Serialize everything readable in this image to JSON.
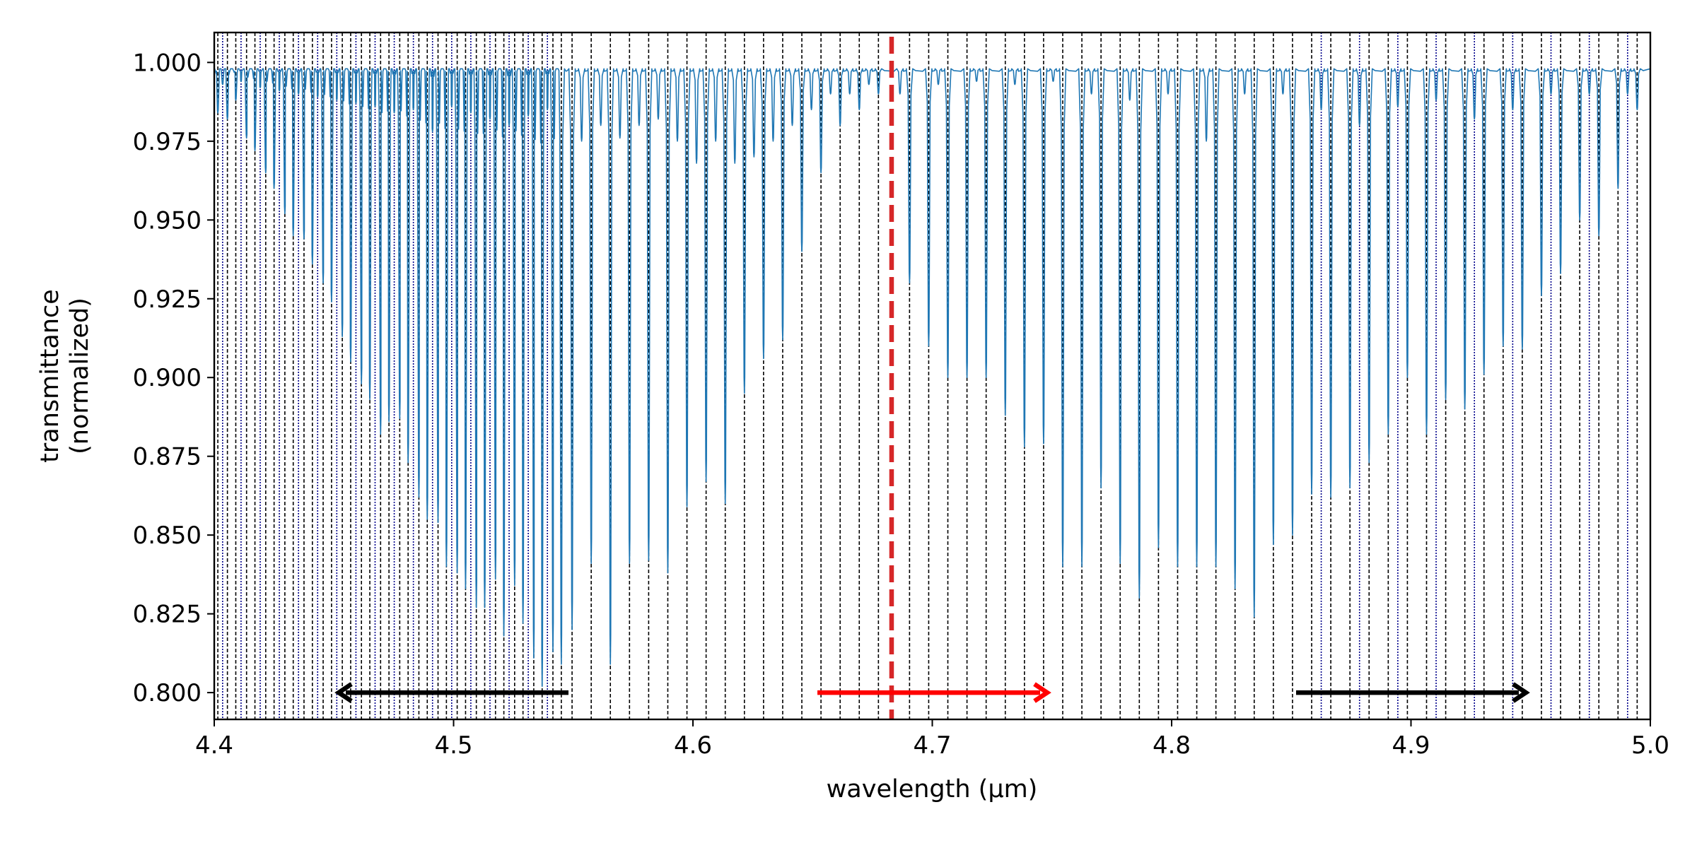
{
  "chart_data": {
    "type": "line",
    "xlabel": "wavelength (μm)",
    "ylabel_lines": [
      "transmittance",
      "(normalized)"
    ],
    "xlim": [
      4.4,
      5.0
    ],
    "ylim": [
      0.7915,
      1.0095
    ],
    "x_ticks": [
      4.4,
      4.5,
      4.6,
      4.7,
      4.8,
      4.9,
      5.0
    ],
    "x_tick_labels": [
      "4.4",
      "4.5",
      "4.6",
      "4.7",
      "4.8",
      "4.9",
      "5.0"
    ],
    "y_ticks": [
      0.8,
      0.825,
      0.85,
      0.875,
      0.9,
      0.925,
      0.95,
      0.975,
      1.0
    ],
    "y_tick_labels": [
      "0.800",
      "0.825",
      "0.850",
      "0.875",
      "0.900",
      "0.925",
      "0.950",
      "0.975",
      "1.000"
    ],
    "grid": false,
    "colors": {
      "spectrum": "#1f77b4",
      "line_marker": "#000000",
      "blue_marker": "#00008b",
      "reference": "#d62728",
      "arrow_red": "#ff0000",
      "arrow_black": "#000000"
    },
    "continuum": 0.998,
    "absorption_lines": [
      {
        "x": 4.4015,
        "depth": 0.984
      },
      {
        "x": 4.4055,
        "depth": 0.982
      },
      {
        "x": 4.409,
        "depth": 0.988
      },
      {
        "x": 4.4135,
        "depth": 0.976
      },
      {
        "x": 4.417,
        "depth": 0.972
      },
      {
        "x": 4.4215,
        "depth": 0.965
      },
      {
        "x": 4.425,
        "depth": 0.96
      },
      {
        "x": 4.4295,
        "depth": 0.952
      },
      {
        "x": 4.433,
        "depth": 0.945
      },
      {
        "x": 4.4375,
        "depth": 0.944
      },
      {
        "x": 4.441,
        "depth": 0.936
      },
      {
        "x": 4.4455,
        "depth": 0.93
      },
      {
        "x": 4.449,
        "depth": 0.924
      },
      {
        "x": 4.4535,
        "depth": 0.913
      },
      {
        "x": 4.457,
        "depth": 0.905
      },
      {
        "x": 4.4615,
        "depth": 0.898
      },
      {
        "x": 4.465,
        "depth": 0.893
      },
      {
        "x": 4.4695,
        "depth": 0.882
      },
      {
        "x": 4.473,
        "depth": 0.886
      },
      {
        "x": 4.4775,
        "depth": 0.887
      },
      {
        "x": 4.481,
        "depth": 0.873
      },
      {
        "x": 4.4855,
        "depth": 0.862
      },
      {
        "x": 4.489,
        "depth": 0.855
      },
      {
        "x": 4.4935,
        "depth": 0.854
      },
      {
        "x": 4.497,
        "depth": 0.84
      },
      {
        "x": 4.5015,
        "depth": 0.838
      },
      {
        "x": 4.505,
        "depth": 0.833
      },
      {
        "x": 4.5095,
        "depth": 0.827
      },
      {
        "x": 4.513,
        "depth": 0.827
      },
      {
        "x": 4.5175,
        "depth": 0.836
      },
      {
        "x": 4.521,
        "depth": 0.818
      },
      {
        "x": 4.5255,
        "depth": 0.834
      },
      {
        "x": 4.529,
        "depth": 0.822
      },
      {
        "x": 4.5335,
        "depth": 0.811
      },
      {
        "x": 4.537,
        "depth": 0.802
      },
      {
        "x": 4.5415,
        "depth": 0.813
      },
      {
        "x": 4.545,
        "depth": 0.809
      },
      {
        "x": 4.5495,
        "depth": 0.82
      },
      {
        "x": 4.5575,
        "depth": 0.841
      },
      {
        "x": 4.5655,
        "depth": 0.809
      },
      {
        "x": 4.5735,
        "depth": 0.841
      },
      {
        "x": 4.5815,
        "depth": 0.842
      },
      {
        "x": 4.5895,
        "depth": 0.838
      },
      {
        "x": 4.5975,
        "depth": 0.859
      },
      {
        "x": 4.6055,
        "depth": 0.867
      },
      {
        "x": 4.6135,
        "depth": 0.86
      },
      {
        "x": 4.6215,
        "depth": 0.895
      },
      {
        "x": 4.6295,
        "depth": 0.906
      },
      {
        "x": 4.6375,
        "depth": 0.912
      },
      {
        "x": 4.6455,
        "depth": 0.94
      },
      {
        "x": 4.6535,
        "depth": 0.965
      },
      {
        "x": 4.6615,
        "depth": 0.98
      },
      {
        "x": 4.6695,
        "depth": 0.985
      },
      {
        "x": 4.6775,
        "depth": 0.99
      },
      {
        "x": 4.6905,
        "depth": 0.93
      },
      {
        "x": 4.6985,
        "depth": 0.91
      },
      {
        "x": 4.7065,
        "depth": 0.9
      },
      {
        "x": 4.7145,
        "depth": 0.9
      },
      {
        "x": 4.7225,
        "depth": 0.9
      },
      {
        "x": 4.7305,
        "depth": 0.888
      },
      {
        "x": 4.7385,
        "depth": 0.878
      },
      {
        "x": 4.7465,
        "depth": 0.879
      },
      {
        "x": 4.7545,
        "depth": 0.84
      },
      {
        "x": 4.7625,
        "depth": 0.84
      },
      {
        "x": 4.7705,
        "depth": 0.865
      },
      {
        "x": 4.7785,
        "depth": 0.841
      },
      {
        "x": 4.7865,
        "depth": 0.83
      },
      {
        "x": 4.7945,
        "depth": 0.846
      },
      {
        "x": 4.8025,
        "depth": 0.84
      },
      {
        "x": 4.8105,
        "depth": 0.84
      },
      {
        "x": 4.8185,
        "depth": 0.84
      },
      {
        "x": 4.8265,
        "depth": 0.833
      },
      {
        "x": 4.8345,
        "depth": 0.824
      },
      {
        "x": 4.8425,
        "depth": 0.847
      },
      {
        "x": 4.8505,
        "depth": 0.85
      },
      {
        "x": 4.8585,
        "depth": 0.863
      },
      {
        "x": 4.8665,
        "depth": 0.862
      },
      {
        "x": 4.8745,
        "depth": 0.865
      },
      {
        "x": 4.8825,
        "depth": 0.873
      },
      {
        "x": 4.8905,
        "depth": 0.882
      },
      {
        "x": 4.8985,
        "depth": 0.9
      },
      {
        "x": 4.9065,
        "depth": 0.882
      },
      {
        "x": 4.9145,
        "depth": 0.893
      },
      {
        "x": 4.9225,
        "depth": 0.89
      },
      {
        "x": 4.9305,
        "depth": 0.901
      },
      {
        "x": 4.9385,
        "depth": 0.91
      },
      {
        "x": 4.9465,
        "depth": 0.909
      },
      {
        "x": 4.9545,
        "depth": 0.926
      },
      {
        "x": 4.9625,
        "depth": 0.933
      },
      {
        "x": 4.9705,
        "depth": 0.95
      },
      {
        "x": 4.9785,
        "depth": 0.945
      },
      {
        "x": 4.9865,
        "depth": 0.96
      },
      {
        "x": 4.9945,
        "depth": 0.985
      }
    ],
    "minor_dips": [
      {
        "x": 4.4035,
        "depth": 0.993
      },
      {
        "x": 4.4112,
        "depth": 0.994
      },
      {
        "x": 4.4192,
        "depth": 0.992
      },
      {
        "x": 4.4272,
        "depth": 0.991
      },
      {
        "x": 4.4352,
        "depth": 0.99
      },
      {
        "x": 4.4432,
        "depth": 0.989
      },
      {
        "x": 4.4512,
        "depth": 0.988
      },
      {
        "x": 4.4592,
        "depth": 0.987
      },
      {
        "x": 4.4672,
        "depth": 0.986
      },
      {
        "x": 4.4752,
        "depth": 0.984
      },
      {
        "x": 4.4832,
        "depth": 0.985
      },
      {
        "x": 4.4912,
        "depth": 0.978
      },
      {
        "x": 4.4992,
        "depth": 0.986
      },
      {
        "x": 4.5072,
        "depth": 0.984
      },
      {
        "x": 4.5152,
        "depth": 0.982
      },
      {
        "x": 4.5232,
        "depth": 0.98
      },
      {
        "x": 4.5312,
        "depth": 0.983
      },
      {
        "x": 4.5392,
        "depth": 0.985
      },
      {
        "x": 4.5535,
        "depth": 0.975
      },
      {
        "x": 4.5615,
        "depth": 0.98
      },
      {
        "x": 4.5695,
        "depth": 0.976
      },
      {
        "x": 4.5775,
        "depth": 0.98
      },
      {
        "x": 4.5855,
        "depth": 0.982
      },
      {
        "x": 4.5935,
        "depth": 0.975
      },
      {
        "x": 4.6015,
        "depth": 0.968
      },
      {
        "x": 4.6095,
        "depth": 0.975
      },
      {
        "x": 4.6175,
        "depth": 0.968
      },
      {
        "x": 4.6255,
        "depth": 0.97
      },
      {
        "x": 4.6335,
        "depth": 0.975
      },
      {
        "x": 4.6415,
        "depth": 0.98
      },
      {
        "x": 4.6495,
        "depth": 0.985
      },
      {
        "x": 4.6575,
        "depth": 0.99
      },
      {
        "x": 4.6655,
        "depth": 0.99
      },
      {
        "x": 4.6735,
        "depth": 0.993
      },
      {
        "x": 4.6865,
        "depth": 0.99
      },
      {
        "x": 4.7025,
        "depth": 0.993
      },
      {
        "x": 4.7185,
        "depth": 0.994
      },
      {
        "x": 4.7345,
        "depth": 0.993
      },
      {
        "x": 4.7505,
        "depth": 0.994
      },
      {
        "x": 4.7665,
        "depth": 0.99
      },
      {
        "x": 4.7825,
        "depth": 0.988
      },
      {
        "x": 4.7985,
        "depth": 0.99
      },
      {
        "x": 4.8145,
        "depth": 0.975
      },
      {
        "x": 4.8305,
        "depth": 0.99
      },
      {
        "x": 4.8465,
        "depth": 0.99
      },
      {
        "x": 4.8625,
        "depth": 0.985
      },
      {
        "x": 4.8785,
        "depth": 0.98
      },
      {
        "x": 4.8945,
        "depth": 0.986
      },
      {
        "x": 4.9105,
        "depth": 0.988
      },
      {
        "x": 4.9265,
        "depth": 0.982
      },
      {
        "x": 4.9425,
        "depth": 0.985
      },
      {
        "x": 4.9585,
        "depth": 0.99
      },
      {
        "x": 4.9745,
        "depth": 0.99
      },
      {
        "x": 4.9905,
        "depth": 0.99
      }
    ],
    "black_markers": [
      4.4015,
      4.4055,
      4.409,
      4.4135,
      4.417,
      4.4215,
      4.425,
      4.4295,
      4.433,
      4.4375,
      4.441,
      4.4455,
      4.449,
      4.4535,
      4.457,
      4.4615,
      4.465,
      4.4695,
      4.473,
      4.4775,
      4.481,
      4.4855,
      4.489,
      4.4935,
      4.497,
      4.5015,
      4.505,
      4.5095,
      4.513,
      4.5175,
      4.521,
      4.5255,
      4.529,
      4.5335,
      4.537,
      4.5415,
      4.545,
      4.5495,
      4.5575,
      4.5655,
      4.5735,
      4.5815,
      4.5895,
      4.5975,
      4.6055,
      4.6135,
      4.6215,
      4.6295,
      4.6375,
      4.6455,
      4.6535,
      4.6615,
      4.6695,
      4.6775,
      4.6905,
      4.6985,
      4.7065,
      4.7145,
      4.7225,
      4.7305,
      4.7385,
      4.7465,
      4.7545,
      4.7625,
      4.7705,
      4.7785,
      4.7865,
      4.7945,
      4.8025,
      4.8105,
      4.8185,
      4.8265,
      4.8345,
      4.8425,
      4.8505,
      4.8585,
      4.8665,
      4.8745,
      4.8825,
      4.8905,
      4.8985,
      4.9065,
      4.9145,
      4.9225,
      4.9305,
      4.9385,
      4.9465,
      4.9545,
      4.9625,
      4.9705,
      4.9785,
      4.9865,
      4.9945
    ],
    "blue_markers": [
      4.4035,
      4.4112,
      4.4192,
      4.4272,
      4.4352,
      4.4432,
      4.4512,
      4.4592,
      4.4672,
      4.4752,
      4.4832,
      4.4912,
      4.4992,
      4.5072,
      4.5152,
      4.5232,
      4.5312,
      4.5392,
      4.8625,
      4.8785,
      4.8945,
      4.9105,
      4.9265,
      4.9425,
      4.9585,
      4.9745,
      4.9905
    ],
    "reference_line": {
      "x": 4.683
    },
    "arrows": [
      {
        "color": "black",
        "from": 4.548,
        "to": 4.452,
        "y": 0.8
      },
      {
        "color": "red",
        "from": 4.652,
        "to": 4.748,
        "y": 0.8
      },
      {
        "color": "black",
        "from": 4.852,
        "to": 4.948,
        "y": 0.8
      }
    ]
  }
}
